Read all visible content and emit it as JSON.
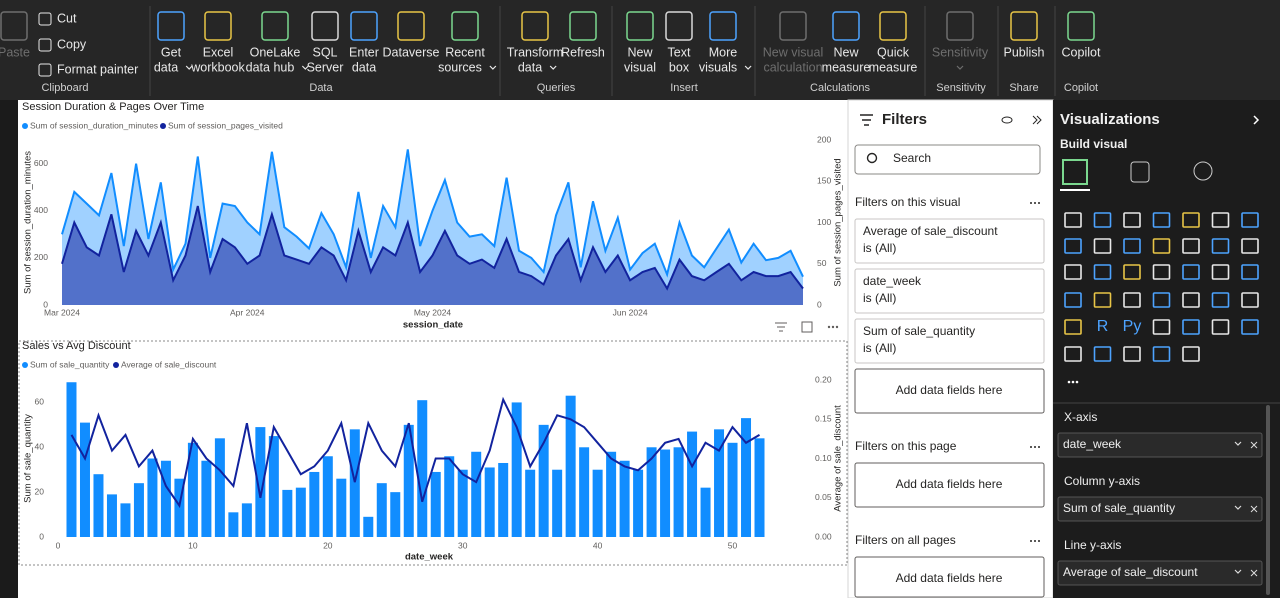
{
  "ribbon": {
    "groups": [
      {
        "label": "Clipboard",
        "buttons": [
          {
            "lines": [
              "Paste"
            ],
            "disabled": true
          },
          {
            "lines": [
              "Cut"
            ]
          },
          {
            "lines": [
              "Copy"
            ]
          },
          {
            "lines": [
              "Format painter"
            ]
          }
        ]
      },
      {
        "label": "Data",
        "buttons": [
          {
            "lines": [
              "Get",
              "data"
            ],
            "chevron": true
          },
          {
            "lines": [
              "Excel",
              "workbook"
            ]
          },
          {
            "lines": [
              "OneLake",
              "data hub"
            ],
            "chevron": true
          },
          {
            "lines": [
              "SQL",
              "Server"
            ]
          },
          {
            "lines": [
              "Enter",
              "data"
            ]
          },
          {
            "lines": [
              "Dataverse"
            ]
          },
          {
            "lines": [
              "Recent",
              "sources"
            ],
            "chevron": true
          }
        ]
      },
      {
        "label": "Queries",
        "buttons": [
          {
            "lines": [
              "Transform",
              "data"
            ],
            "chevron": true
          },
          {
            "lines": [
              "Refresh"
            ]
          }
        ]
      },
      {
        "label": "Insert",
        "buttons": [
          {
            "lines": [
              "New",
              "visual"
            ]
          },
          {
            "lines": [
              "Text",
              "box"
            ]
          },
          {
            "lines": [
              "More",
              "visuals"
            ],
            "chevron": true
          }
        ]
      },
      {
        "label": "Calculations",
        "buttons": [
          {
            "lines": [
              "New visual",
              "calculation"
            ],
            "disabled": true
          },
          {
            "lines": [
              "New",
              "measure"
            ]
          },
          {
            "lines": [
              "Quick",
              "measure"
            ]
          }
        ]
      },
      {
        "label": "Sensitivity",
        "buttons": [
          {
            "lines": [
              "Sensitivity"
            ],
            "disabled": true,
            "chevron": true
          }
        ]
      },
      {
        "label": "Share",
        "buttons": [
          {
            "lines": [
              "Publish"
            ]
          }
        ]
      },
      {
        "label": "Copilot",
        "buttons": [
          {
            "lines": [
              "Copilot"
            ]
          }
        ]
      }
    ]
  },
  "chart_data": [
    {
      "type": "area",
      "title": "Session Duration & Pages Over Time",
      "categories": [
        "Mar 2024",
        null,
        null,
        null,
        null,
        null,
        null,
        null,
        null,
        null,
        null,
        null,
        null,
        null,
        null,
        "Apr 2024",
        null,
        null,
        null,
        null,
        null,
        null,
        null,
        null,
        null,
        null,
        null,
        null,
        null,
        null,
        "May 2024",
        null,
        null,
        null,
        null,
        null,
        null,
        null,
        null,
        null,
        null,
        null,
        null,
        null,
        null,
        null,
        "Jun 2024",
        null,
        null,
        null,
        null,
        null,
        null,
        null,
        null,
        null,
        null,
        null,
        null,
        null,
        null
      ],
      "x_label": "session_date",
      "y_label": "Sum of session_duration_minutes",
      "y2_label": "Sum of session_pages_visited",
      "ylim": [
        0,
        700
      ],
      "yticks": [
        0,
        200,
        400,
        600
      ],
      "y2lim": [
        0,
        200
      ],
      "y2ticks": [
        0,
        50,
        100,
        150,
        200
      ],
      "series": [
        {
          "name": "Sum of session_duration_minutes",
          "color": "#118dff",
          "values": [
            300,
            480,
            430,
            380,
            560,
            250,
            600,
            280,
            520,
            150,
            260,
            630,
            200,
            430,
            420,
            350,
            300,
            650,
            330,
            290,
            240,
            390,
            300,
            160,
            480,
            200,
            420,
            330,
            660,
            250,
            400,
            530,
            350,
            290,
            300,
            250,
            540,
            230,
            200,
            140,
            380,
            520,
            160,
            440,
            230,
            370,
            150,
            220,
            260,
            130,
            350,
            210,
            160,
            240,
            320,
            180,
            260,
            190,
            200,
            230,
            120
          ]
        },
        {
          "name": "Sum of session_pages_visited",
          "color": "#12239e",
          "axis": "y2",
          "values": [
            50,
            100,
            70,
            60,
            110,
            40,
            90,
            60,
            100,
            30,
            60,
            120,
            40,
            80,
            70,
            50,
            60,
            110,
            60,
            55,
            50,
            70,
            60,
            30,
            90,
            40,
            70,
            60,
            100,
            40,
            60,
            90,
            60,
            50,
            55,
            45,
            80,
            40,
            35,
            25,
            60,
            80,
            30,
            70,
            40,
            60,
            30,
            40,
            45,
            20,
            55,
            35,
            30,
            40,
            50,
            30,
            40,
            35,
            35,
            40,
            20
          ]
        }
      ]
    },
    {
      "type": "combo",
      "title": "Sales vs Avg Discount",
      "x": [
        1,
        2,
        3,
        4,
        5,
        6,
        7,
        8,
        9,
        10,
        11,
        12,
        13,
        14,
        15,
        16,
        17,
        18,
        19,
        20,
        21,
        22,
        23,
        24,
        25,
        26,
        27,
        28,
        29,
        30,
        31,
        32,
        33,
        34,
        35,
        36,
        37,
        38,
        39,
        40,
        41,
        42,
        43,
        44,
        45,
        46,
        47,
        48,
        49,
        50,
        51,
        52
      ],
      "x_label": "date_week",
      "y_label": "Sum of sale_quantity",
      "y2_label": "Average of sale_discount",
      "xlim": [
        0,
        53
      ],
      "xticks": [
        0,
        10,
        20,
        30,
        40,
        50
      ],
      "ylim": [
        0,
        70
      ],
      "yticks": [
        0,
        20,
        40,
        60
      ],
      "y2lim": [
        0,
        0.2
      ],
      "y2ticks": [
        {
          "value": 0,
          "label": "0.00"
        },
        0.05,
        {
          "value": 0.1,
          "label": "0.10"
        },
        0.15,
        {
          "value": 0.2,
          "label": "0.20"
        }
      ],
      "series": [
        {
          "name": "Sum of sale_quantity",
          "color": "#118dff",
          "mark": "bar",
          "values": [
            69,
            51,
            28,
            19,
            15,
            24,
            35,
            34,
            26,
            42,
            34,
            44,
            11,
            15,
            49,
            45,
            21,
            22,
            29,
            36,
            26,
            48,
            9,
            24,
            20,
            50,
            61,
            29,
            36,
            30,
            38,
            31,
            33,
            60,
            30,
            50,
            30,
            63,
            40,
            30,
            38,
            34,
            30,
            40,
            39,
            40,
            47,
            22,
            48,
            42,
            53,
            44
          ]
        },
        {
          "name": "Average of sale_discount",
          "color": "#12239e",
          "mark": "line",
          "axis": "y2",
          "values": [
            0.13,
            0.1,
            0.155,
            0.11,
            0.13,
            0.09,
            0.11,
            0.065,
            0.04,
            0.125,
            0.1,
            0.085,
            0.065,
            0.145,
            0.05,
            0.14,
            0.11,
            0.08,
            0.09,
            0.11,
            0.145,
            0.07,
            0.145,
            0.11,
            0.09,
            0.145,
            0.045,
            0.1,
            0.1,
            0.08,
            0.07,
            0.11,
            0.175,
            0.14,
            0.09,
            0.12,
            0.155,
            0.15,
            0.14,
            0.12,
            0.1,
            0.09,
            0.085,
            0.1,
            0.12,
            0.125,
            0.09,
            0.12,
            0.11,
            0.14,
            0.12,
            0.13
          ]
        }
      ]
    }
  ],
  "filters": {
    "title": "Filters",
    "search": "Search",
    "sections": [
      {
        "heading": "Filters on this visual",
        "cards": [
          {
            "field": "Average of sale_discount",
            "state": "is (All)"
          },
          {
            "field": "date_week",
            "state": "is (All)"
          },
          {
            "field": "Sum of sale_quantity",
            "state": "is (All)"
          }
        ],
        "drop": "Add data fields here"
      },
      {
        "heading": "Filters on this page",
        "cards": [],
        "drop": "Add data fields here"
      },
      {
        "heading": "Filters on all pages",
        "cards": [],
        "drop": "Add data fields here"
      }
    ]
  },
  "visualizations": {
    "title": "Visualizations",
    "subtitle": "Build visual",
    "gallery_texts": [
      "R",
      "Py"
    ],
    "wells": [
      {
        "label": "X-axis",
        "field": "date_week"
      },
      {
        "label": "Column y-axis",
        "field": "Sum of sale_quantity"
      },
      {
        "label": "Line y-axis",
        "field": "Average of sale_discount"
      }
    ]
  }
}
